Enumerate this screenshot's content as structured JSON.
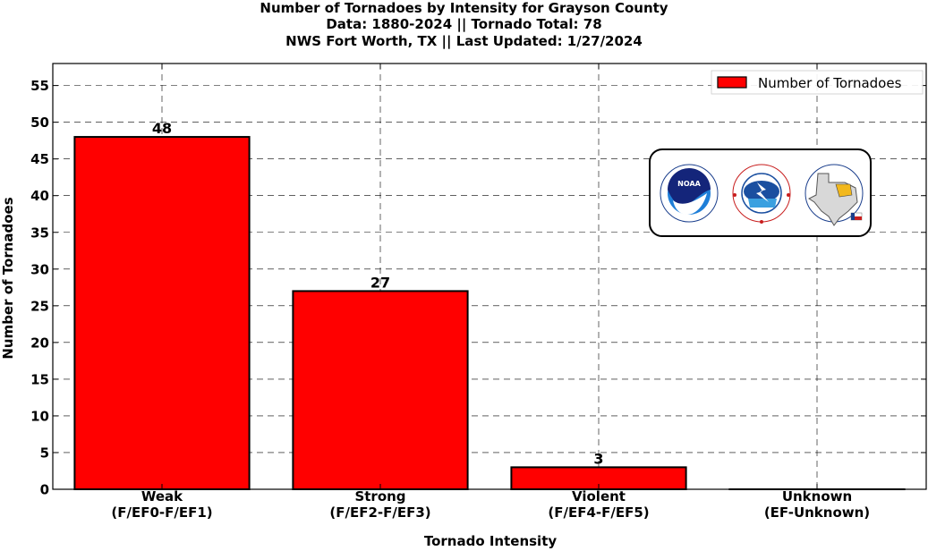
{
  "chart_data": {
    "type": "bar",
    "title_lines": [
      "Number of Tornadoes by Intensity for Grayson County",
      "Data: 1880-2024 || Tornado Total: 78",
      "NWS Fort Worth, TX || Last Updated: 1/27/2024"
    ],
    "categories": [
      [
        "Weak",
        "(F/EF0-F/EF1)"
      ],
      [
        "Strong",
        "(F/EF2-F/EF3)"
      ],
      [
        "Violent",
        "(F/EF4-F/EF5)"
      ],
      [
        "Unknown",
        "(EF-Unknown)"
      ]
    ],
    "series": [
      {
        "name": "Number of Tornadoes",
        "values": [
          48,
          27,
          3,
          0
        ],
        "color": "#ff0000"
      }
    ],
    "data_labels": [
      "48",
      "27",
      "3",
      ""
    ],
    "xlabel": "Tornado Intensity",
    "ylabel": "Number of Tornadoes",
    "ylim": [
      0,
      58
    ],
    "yticks": [
      0,
      5,
      10,
      15,
      20,
      25,
      30,
      35,
      40,
      45,
      50,
      55
    ],
    "grid": true,
    "legend_position": "top-right",
    "logos": [
      "noaa-logo",
      "nws-logo",
      "texas-map-logo"
    ]
  }
}
